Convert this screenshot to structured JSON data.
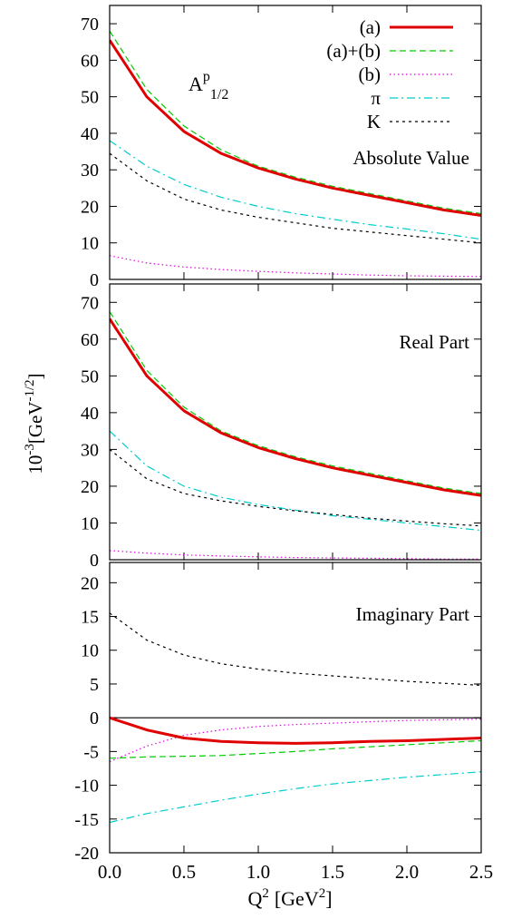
{
  "figure": {
    "ylabel_base": "10",
    "ylabel_exp": "-3",
    "ylabel_unit_open": "[GeV",
    "ylabel_unit_exp": "-1/2",
    "ylabel_unit_close": "]",
    "xlabel_q": "Q",
    "xlabel_q_exp": "2",
    "xlabel_unit_open": "[GeV",
    "xlabel_unit_exp": "2",
    "xlabel_unit_close": "]",
    "amplitude_label": {
      "base": "A",
      "sup": "p",
      "sub": "1/2"
    }
  },
  "chart_data": [
    {
      "type": "line",
      "panel_label": "Absolute Value",
      "xlim": [
        0,
        2.5
      ],
      "ylim": [
        0,
        75
      ],
      "xticks": [
        "0.0",
        "0.5",
        "1.0",
        "1.5",
        "2.0",
        "2.5"
      ],
      "yticks": [
        0,
        10,
        20,
        30,
        40,
        50,
        60,
        70
      ],
      "x": [
        0,
        0.25,
        0.5,
        0.75,
        1.0,
        1.25,
        1.5,
        1.75,
        2.0,
        2.25,
        2.5
      ],
      "series": [
        {
          "name": "(a)",
          "color": "#e00000",
          "style": "solid",
          "width": 3,
          "values": [
            65.5,
            50,
            40.5,
            34.5,
            30.5,
            27.5,
            25,
            23,
            21,
            19,
            17.5
          ]
        },
        {
          "name": "(a)+(b)",
          "color": "#00cc00",
          "style": "dashed",
          "width": 1.2,
          "values": [
            68,
            52,
            42,
            35.5,
            31,
            28,
            25.5,
            23.5,
            21.5,
            19.5,
            18
          ]
        },
        {
          "name": "(b)",
          "color": "#e000e0",
          "style": "dotted",
          "width": 1.2,
          "values": [
            6.5,
            4.5,
            3.4,
            2.7,
            2.2,
            1.8,
            1.5,
            1.2,
            1.0,
            0.9,
            0.8
          ]
        },
        {
          "name": "π",
          "color": "#00cccc",
          "style": "dashdot",
          "width": 1.2,
          "values": [
            38,
            31,
            26,
            22.5,
            20,
            18,
            16.5,
            15,
            13.8,
            12.5,
            11
          ]
        },
        {
          "name": "K",
          "color": "#000000",
          "style": "dashed-fine",
          "width": 1.2,
          "values": [
            34.5,
            27,
            22,
            19,
            17,
            15.5,
            14,
            13,
            12,
            11,
            10
          ]
        }
      ],
      "legend": "top-right"
    },
    {
      "type": "line",
      "panel_label": "Real Part",
      "xlim": [
        0,
        2.5
      ],
      "ylim": [
        0,
        75
      ],
      "xticks": [
        "0.0",
        "0.5",
        "1.0",
        "1.5",
        "2.0",
        "2.5"
      ],
      "yticks": [
        0,
        10,
        20,
        30,
        40,
        50,
        60,
        70
      ],
      "x": [
        0,
        0.25,
        0.5,
        0.75,
        1.0,
        1.25,
        1.5,
        1.75,
        2.0,
        2.25,
        2.5
      ],
      "series": [
        {
          "name": "(a)",
          "color": "#e00000",
          "style": "solid",
          "width": 3,
          "values": [
            65.5,
            50,
            40.5,
            34.5,
            30.5,
            27.5,
            25,
            23,
            21,
            19,
            17.5
          ]
        },
        {
          "name": "(a)+(b)",
          "color": "#00cc00",
          "style": "dashed",
          "width": 1.2,
          "values": [
            67.5,
            51.5,
            41.5,
            35,
            31,
            28,
            25.5,
            23.5,
            21.5,
            19.5,
            18
          ]
        },
        {
          "name": "(b)",
          "color": "#e000e0",
          "style": "dotted",
          "width": 1.2,
          "values": [
            2.5,
            1.8,
            1.3,
            1.0,
            0.8,
            0.6,
            0.5,
            0.4,
            0.3,
            0.2,
            0.2
          ]
        },
        {
          "name": "π",
          "color": "#00cccc",
          "style": "dashdot",
          "width": 1.2,
          "values": [
            35,
            25.5,
            20,
            17,
            15,
            13.5,
            12,
            11,
            10,
            9,
            8
          ]
        },
        {
          "name": "K",
          "color": "#000000",
          "style": "dashed-fine",
          "width": 1.2,
          "values": [
            30,
            22,
            18,
            16,
            14.5,
            13.3,
            12.3,
            11.3,
            10.5,
            9.8,
            9.2
          ]
        }
      ]
    },
    {
      "type": "line",
      "panel_label": "Imaginary Part",
      "xlim": [
        0,
        2.5
      ],
      "ylim": [
        -20,
        23
      ],
      "xticks": [
        "0.0",
        "0.5",
        "1.0",
        "1.5",
        "2.0",
        "2.5"
      ],
      "yticks": [
        -20,
        -15,
        -10,
        -5,
        0,
        5,
        10,
        15,
        20
      ],
      "zero_line": true,
      "x": [
        0,
        0.25,
        0.5,
        0.75,
        1.0,
        1.25,
        1.5,
        1.75,
        2.0,
        2.25,
        2.5
      ],
      "series": [
        {
          "name": "(a)",
          "color": "#e00000",
          "style": "solid",
          "width": 3,
          "values": [
            0,
            -1.8,
            -3.0,
            -3.5,
            -3.7,
            -3.8,
            -3.7,
            -3.5,
            -3.4,
            -3.2,
            -3.0
          ]
        },
        {
          "name": "(a)+(b)",
          "color": "#00cc00",
          "style": "dashed",
          "width": 1.2,
          "values": [
            -6.0,
            -5.8,
            -5.7,
            -5.6,
            -5.3,
            -5.0,
            -4.6,
            -4.3,
            -4.0,
            -3.7,
            -3.4
          ]
        },
        {
          "name": "(b)",
          "color": "#e000e0",
          "style": "dotted",
          "width": 1.2,
          "values": [
            -6.5,
            -4.2,
            -2.6,
            -1.8,
            -1.3,
            -1.0,
            -0.8,
            -0.6,
            -0.4,
            -0.3,
            -0.2
          ]
        },
        {
          "name": "π",
          "color": "#00cccc",
          "style": "dashdot",
          "width": 1.2,
          "values": [
            -15.5,
            -14.2,
            -13.2,
            -12.2,
            -11.3,
            -10.5,
            -9.8,
            -9.3,
            -8.8,
            -8.4,
            -8.0
          ]
        },
        {
          "name": "K",
          "color": "#000000",
          "style": "dashed-fine",
          "width": 1.2,
          "values": [
            15.5,
            11.5,
            9.3,
            8.0,
            7.2,
            6.6,
            6.2,
            5.8,
            5.4,
            5.1,
            4.8
          ]
        }
      ]
    }
  ]
}
